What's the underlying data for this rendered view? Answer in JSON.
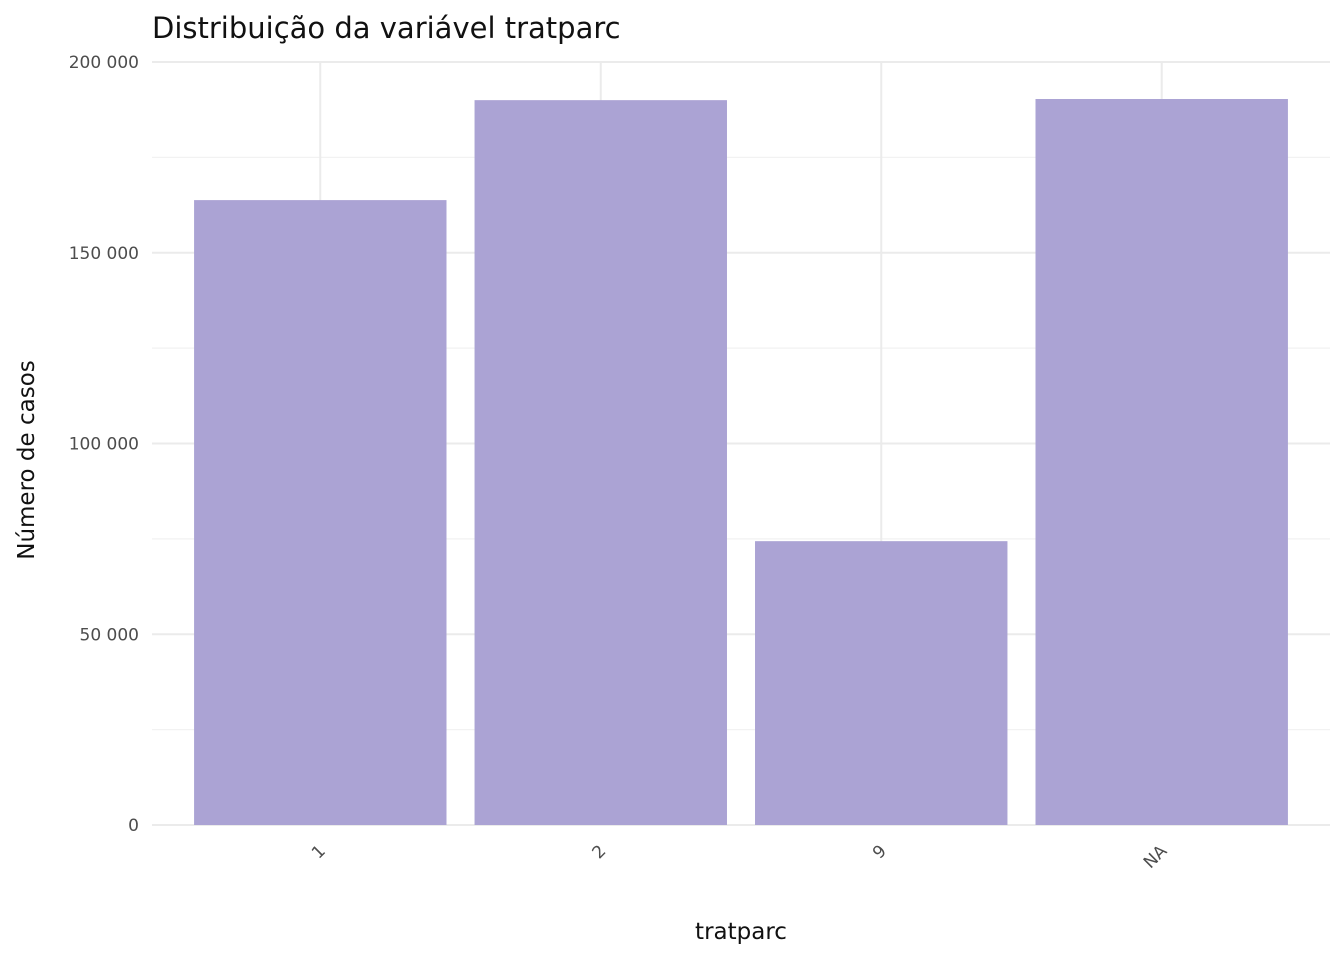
{
  "chart_data": {
    "type": "bar",
    "title": "Distribuição da variável  tratparc",
    "xlabel": "tratparc",
    "ylabel": "Número de casos",
    "categories": [
      "1",
      "2",
      "9",
      "NA"
    ],
    "values": [
      163800,
      190000,
      74400,
      190300
    ],
    "ylim": [
      0,
      200000
    ],
    "yticks": [
      0,
      50000,
      100000,
      150000,
      200000
    ],
    "ytick_labels": [
      "0",
      "50 000",
      "100 000",
      "150 000",
      "200 000"
    ],
    "bar_color": "#aba3d4",
    "grid": true,
    "legend": "none"
  }
}
